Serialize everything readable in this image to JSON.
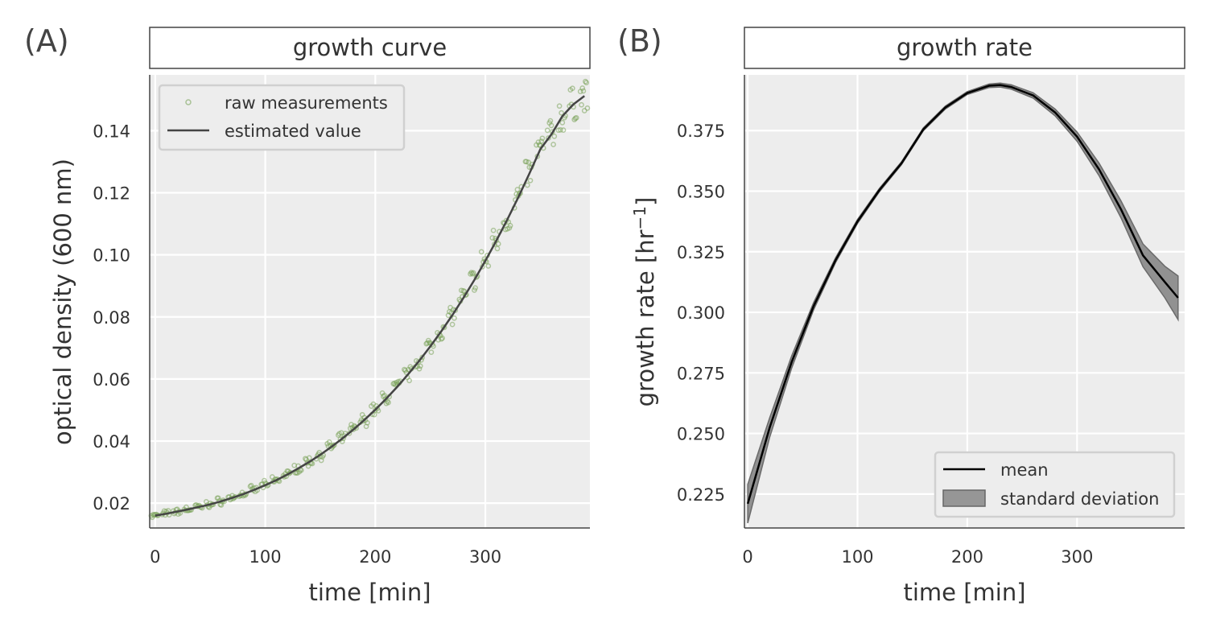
{
  "panels": [
    {
      "letter": "(A)",
      "strip_title": "growth curve"
    },
    {
      "letter": "(B)",
      "strip_title": "growth rate"
    }
  ],
  "chart_data": [
    {
      "type": "scatter",
      "title": "growth curve",
      "xlabel": "time [min]",
      "ylabel": "optical density (600 nm)",
      "xlim": [
        -5,
        395
      ],
      "ylim": [
        0.012,
        0.158
      ],
      "xticks": [
        0,
        100,
        200,
        300
      ],
      "yticks": [
        0.02,
        0.04,
        0.06,
        0.08,
        0.1,
        0.12,
        0.14
      ],
      "ytick_labels": [
        "0.02",
        "0.04",
        "0.06",
        "0.08",
        "0.10",
        "0.12",
        "0.14"
      ],
      "grid": true,
      "legend_position": "upper-left",
      "series": [
        {
          "name": "raw measurements",
          "kind": "scatter",
          "color": "#7aa35a",
          "x": [
            0,
            10,
            20,
            30,
            40,
            50,
            60,
            70,
            80,
            90,
            100,
            110,
            120,
            130,
            140,
            150,
            160,
            170,
            180,
            190,
            200,
            210,
            220,
            230,
            240,
            250,
            260,
            270,
            280,
            290,
            300,
            310,
            320,
            330,
            340,
            350,
            360,
            370,
            380,
            390
          ],
          "y": [
            0.016,
            0.0166,
            0.0173,
            0.018,
            0.0188,
            0.0196,
            0.0206,
            0.0217,
            0.0229,
            0.0243,
            0.0258,
            0.0274,
            0.0292,
            0.0312,
            0.0333,
            0.0356,
            0.0381,
            0.0408,
            0.0437,
            0.0468,
            0.0501,
            0.0537,
            0.0575,
            0.0616,
            0.0659,
            0.0705,
            0.0754,
            0.0806,
            0.0861,
            0.0919,
            0.0981,
            0.1046,
            0.1114,
            0.1186,
            0.1262,
            0.1341,
            0.1388,
            0.1447,
            0.1485,
            0.1512
          ],
          "spread": 0.0035,
          "replicates": 8
        },
        {
          "name": "estimated value",
          "kind": "line",
          "color": "#444444",
          "x": [
            0,
            10,
            20,
            30,
            40,
            50,
            60,
            70,
            80,
            90,
            100,
            110,
            120,
            130,
            140,
            150,
            160,
            170,
            180,
            190,
            200,
            210,
            220,
            230,
            240,
            250,
            260,
            270,
            280,
            290,
            300,
            310,
            320,
            330,
            340,
            350,
            360,
            370,
            380,
            390
          ],
          "y": [
            0.016,
            0.0166,
            0.0173,
            0.018,
            0.0188,
            0.0196,
            0.0206,
            0.0217,
            0.0229,
            0.0243,
            0.0258,
            0.0274,
            0.0292,
            0.0312,
            0.0333,
            0.0356,
            0.0381,
            0.0408,
            0.0437,
            0.0468,
            0.0501,
            0.0537,
            0.0575,
            0.0616,
            0.0659,
            0.0705,
            0.0754,
            0.0806,
            0.0861,
            0.0919,
            0.0981,
            0.1046,
            0.1114,
            0.1186,
            0.1262,
            0.1341,
            0.1388,
            0.1447,
            0.1485,
            0.1512
          ]
        }
      ]
    },
    {
      "type": "line",
      "title": "growth rate",
      "xlabel": "time [min]",
      "ylabel": "growth rate [hr",
      "ylabel_superscript": "−1",
      "ylabel_suffix": "]",
      "xlim": [
        -3,
        398
      ],
      "ylim": [
        0.211,
        0.398
      ],
      "xticks": [
        0,
        100,
        200,
        300
      ],
      "yticks": [
        0.225,
        0.25,
        0.275,
        0.3,
        0.325,
        0.35,
        0.375
      ],
      "ytick_labels": [
        "0.225",
        "0.250",
        "0.275",
        "0.300",
        "0.325",
        "0.350",
        "0.375"
      ],
      "grid": true,
      "legend_position": "lower-right",
      "series": [
        {
          "name": "mean",
          "kind": "line",
          "color": "#000000",
          "x": [
            0,
            20,
            40,
            60,
            80,
            100,
            120,
            140,
            160,
            180,
            200,
            220,
            230,
            240,
            260,
            280,
            300,
            320,
            340,
            360,
            380,
            392
          ],
          "y": [
            0.221,
            0.2525,
            0.2795,
            0.3025,
            0.3215,
            0.3375,
            0.3505,
            0.3615,
            0.3755,
            0.3845,
            0.3905,
            0.3935,
            0.3938,
            0.393,
            0.3895,
            0.3825,
            0.3725,
            0.359,
            0.3425,
            0.3235,
            0.3125,
            0.306
          ]
        },
        {
          "name": "standard deviation",
          "kind": "band",
          "color": "#808080",
          "x": [
            0,
            20,
            40,
            60,
            80,
            100,
            120,
            140,
            160,
            180,
            200,
            220,
            230,
            240,
            260,
            280,
            300,
            320,
            340,
            360,
            380,
            392
          ],
          "lower": [
            0.213,
            0.2485,
            0.277,
            0.301,
            0.3205,
            0.3367,
            0.3498,
            0.3609,
            0.3749,
            0.3839,
            0.3899,
            0.3928,
            0.393,
            0.3921,
            0.3884,
            0.3811,
            0.3706,
            0.3564,
            0.339,
            0.3188,
            0.306,
            0.297
          ],
          "upper": [
            0.229,
            0.2565,
            0.282,
            0.304,
            0.3225,
            0.3383,
            0.3512,
            0.3621,
            0.3761,
            0.3851,
            0.3911,
            0.3942,
            0.3946,
            0.3939,
            0.3906,
            0.3839,
            0.3744,
            0.3616,
            0.346,
            0.3282,
            0.319,
            0.315
          ]
        }
      ]
    }
  ]
}
